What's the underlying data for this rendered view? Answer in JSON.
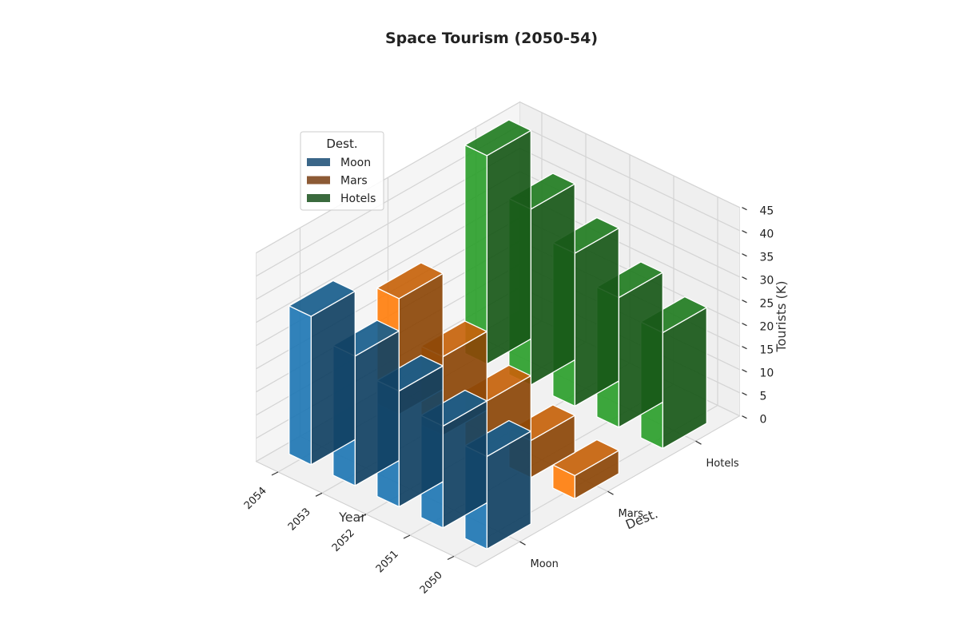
{
  "chart_data": {
    "type": "bar3d",
    "title": "Space Tourism (2050-54)",
    "xlabel": "Year",
    "ylabel": "Dest.",
    "zlabel": "Tourists (K)",
    "categories": [
      "2050",
      "2051",
      "2052",
      "2053",
      "2054"
    ],
    "zticks": [
      "0",
      "5",
      "10",
      "15",
      "20",
      "25",
      "30",
      "35",
      "40",
      "45"
    ],
    "zlim": [
      0,
      45
    ],
    "grid": true,
    "legend": {
      "title": "Dest.",
      "placement": "top-left"
    },
    "series": [
      {
        "name": "Moon",
        "color": "#1f77b4",
        "legend_color": "#3a6688",
        "values": [
          20,
          22,
          25,
          28,
          32
        ]
      },
      {
        "name": "Mars",
        "color": "#ff7f0e",
        "legend_color": "#8c5a35",
        "values": [
          5,
          8,
          12,
          17,
          25
        ]
      },
      {
        "name": "Hotels",
        "color": "#2ca02c",
        "legend_color": "#3a6a3d",
        "values": [
          25,
          28,
          33,
          38,
          45
        ]
      }
    ]
  }
}
